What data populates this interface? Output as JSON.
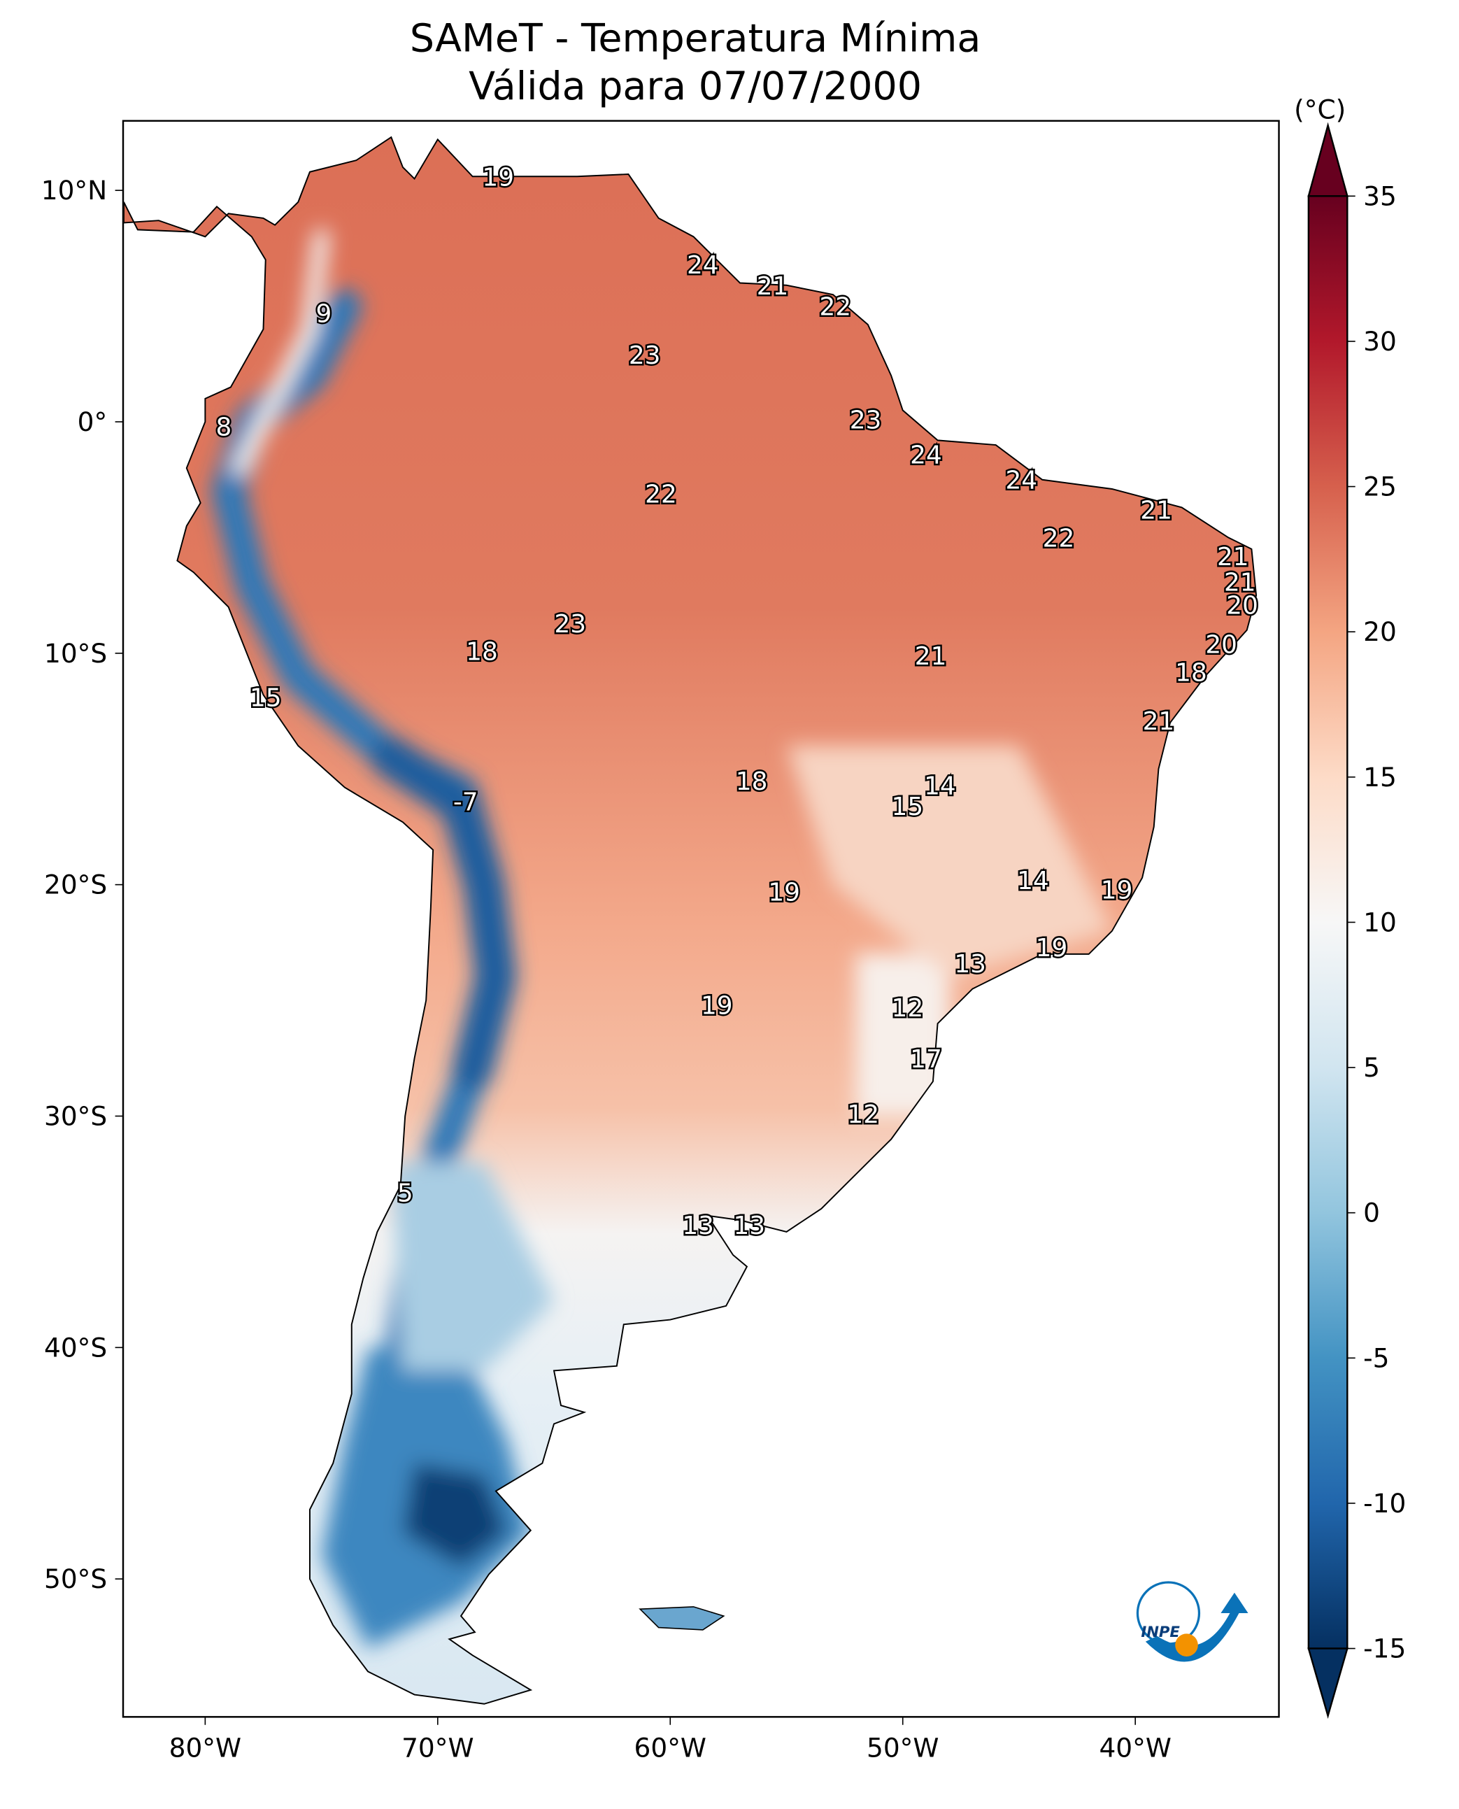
{
  "title_line1": "SAMeT - Temperatura Mínima",
  "title_line2": "Válida para 07/07/2000",
  "colorbar": {
    "unit_label": "(°C)",
    "range": [
      -15,
      35
    ],
    "extend": "both",
    "colormap": "RdBu_r",
    "ticks": [
      "35",
      "30",
      "25",
      "20",
      "15",
      "10",
      "5",
      "0",
      "-5",
      "-10",
      "-15"
    ],
    "tick_values": [
      35,
      30,
      25,
      20,
      15,
      10,
      5,
      0,
      -5,
      -10,
      -15
    ],
    "colors": [
      "#053061",
      "#2166ac",
      "#4393c3",
      "#92c5de",
      "#d1e5f0",
      "#f7f7f7",
      "#fddbc7",
      "#f4a582",
      "#d6604d",
      "#b2182b",
      "#67001f"
    ]
  },
  "axes": {
    "lon_ticks": [
      {
        "v": -80,
        "t": "80°W"
      },
      {
        "v": -70,
        "t": "70°W"
      },
      {
        "v": -60,
        "t": "60°W"
      },
      {
        "v": -50,
        "t": "50°W"
      },
      {
        "v": -40,
        "t": "40°W"
      }
    ],
    "lat_ticks": [
      {
        "v": 10,
        "t": "10°N"
      },
      {
        "v": 0,
        "t": "0°"
      },
      {
        "v": -10,
        "t": "10°S"
      },
      {
        "v": -20,
        "t": "20°S"
      },
      {
        "v": -30,
        "t": "30°S"
      },
      {
        "v": -40,
        "t": "40°S"
      },
      {
        "v": -50,
        "t": "50°S"
      }
    ],
    "lon_range": [
      -83.5,
      -33.8
    ],
    "lat_range": [
      -56.5,
      12.5
    ]
  },
  "station_labels": [
    {
      "value": "19",
      "lon": -67.4,
      "lat": 10.6
    },
    {
      "value": "24",
      "lon": -58.6,
      "lat": 6.8
    },
    {
      "value": "21",
      "lon": -55.6,
      "lat": 5.9
    },
    {
      "value": "22",
      "lon": -52.9,
      "lat": 5.0
    },
    {
      "value": "9",
      "lon": -74.9,
      "lat": 4.7
    },
    {
      "value": "23",
      "lon": -61.1,
      "lat": 2.9
    },
    {
      "value": "8",
      "lon": -79.2,
      "lat": -0.2
    },
    {
      "value": "23",
      "lon": -51.6,
      "lat": 0.1
    },
    {
      "value": "24",
      "lon": -49.0,
      "lat": -1.4
    },
    {
      "value": "24",
      "lon": -44.9,
      "lat": -2.5
    },
    {
      "value": "22",
      "lon": -60.4,
      "lat": -3.1
    },
    {
      "value": "21",
      "lon": -39.1,
      "lat": -3.8
    },
    {
      "value": "22",
      "lon": -43.3,
      "lat": -5.0
    },
    {
      "value": "21",
      "lon": -35.8,
      "lat": -5.8
    },
    {
      "value": "21",
      "lon": -35.5,
      "lat": -6.9
    },
    {
      "value": "20",
      "lon": -35.4,
      "lat": -7.9
    },
    {
      "value": "23",
      "lon": -64.3,
      "lat": -8.7
    },
    {
      "value": "20",
      "lon": -36.3,
      "lat": -9.6
    },
    {
      "value": "18",
      "lon": -68.1,
      "lat": -9.9
    },
    {
      "value": "21",
      "lon": -48.8,
      "lat": -10.1
    },
    {
      "value": "18",
      "lon": -37.6,
      "lat": -10.8
    },
    {
      "value": "15",
      "lon": -77.4,
      "lat": -11.9
    },
    {
      "value": "21",
      "lon": -39.0,
      "lat": -12.9
    },
    {
      "value": "18",
      "lon": -56.5,
      "lat": -15.5
    },
    {
      "value": "14",
      "lon": -48.4,
      "lat": -15.7
    },
    {
      "value": "-7",
      "lon": -68.8,
      "lat": -16.4
    },
    {
      "value": "15",
      "lon": -49.8,
      "lat": -16.6
    },
    {
      "value": "14",
      "lon": -44.4,
      "lat": -19.8
    },
    {
      "value": "19",
      "lon": -55.1,
      "lat": -20.3
    },
    {
      "value": "19",
      "lon": -40.8,
      "lat": -20.2
    },
    {
      "value": "19",
      "lon": -43.6,
      "lat": -22.7
    },
    {
      "value": "13",
      "lon": -47.1,
      "lat": -23.4
    },
    {
      "value": "19",
      "lon": -58.0,
      "lat": -25.2
    },
    {
      "value": "12",
      "lon": -49.8,
      "lat": -25.3
    },
    {
      "value": "17",
      "lon": -49.0,
      "lat": -27.5
    },
    {
      "value": "12",
      "lon": -51.7,
      "lat": -29.9
    },
    {
      "value": "5",
      "lon": -71.4,
      "lat": -33.3
    },
    {
      "value": "13",
      "lon": -58.8,
      "lat": -34.7
    },
    {
      "value": "13",
      "lon": -56.6,
      "lat": -34.7
    }
  ],
  "logo": {
    "text": "INPE",
    "colors": [
      "#0a72b8",
      "#f39200"
    ]
  }
}
